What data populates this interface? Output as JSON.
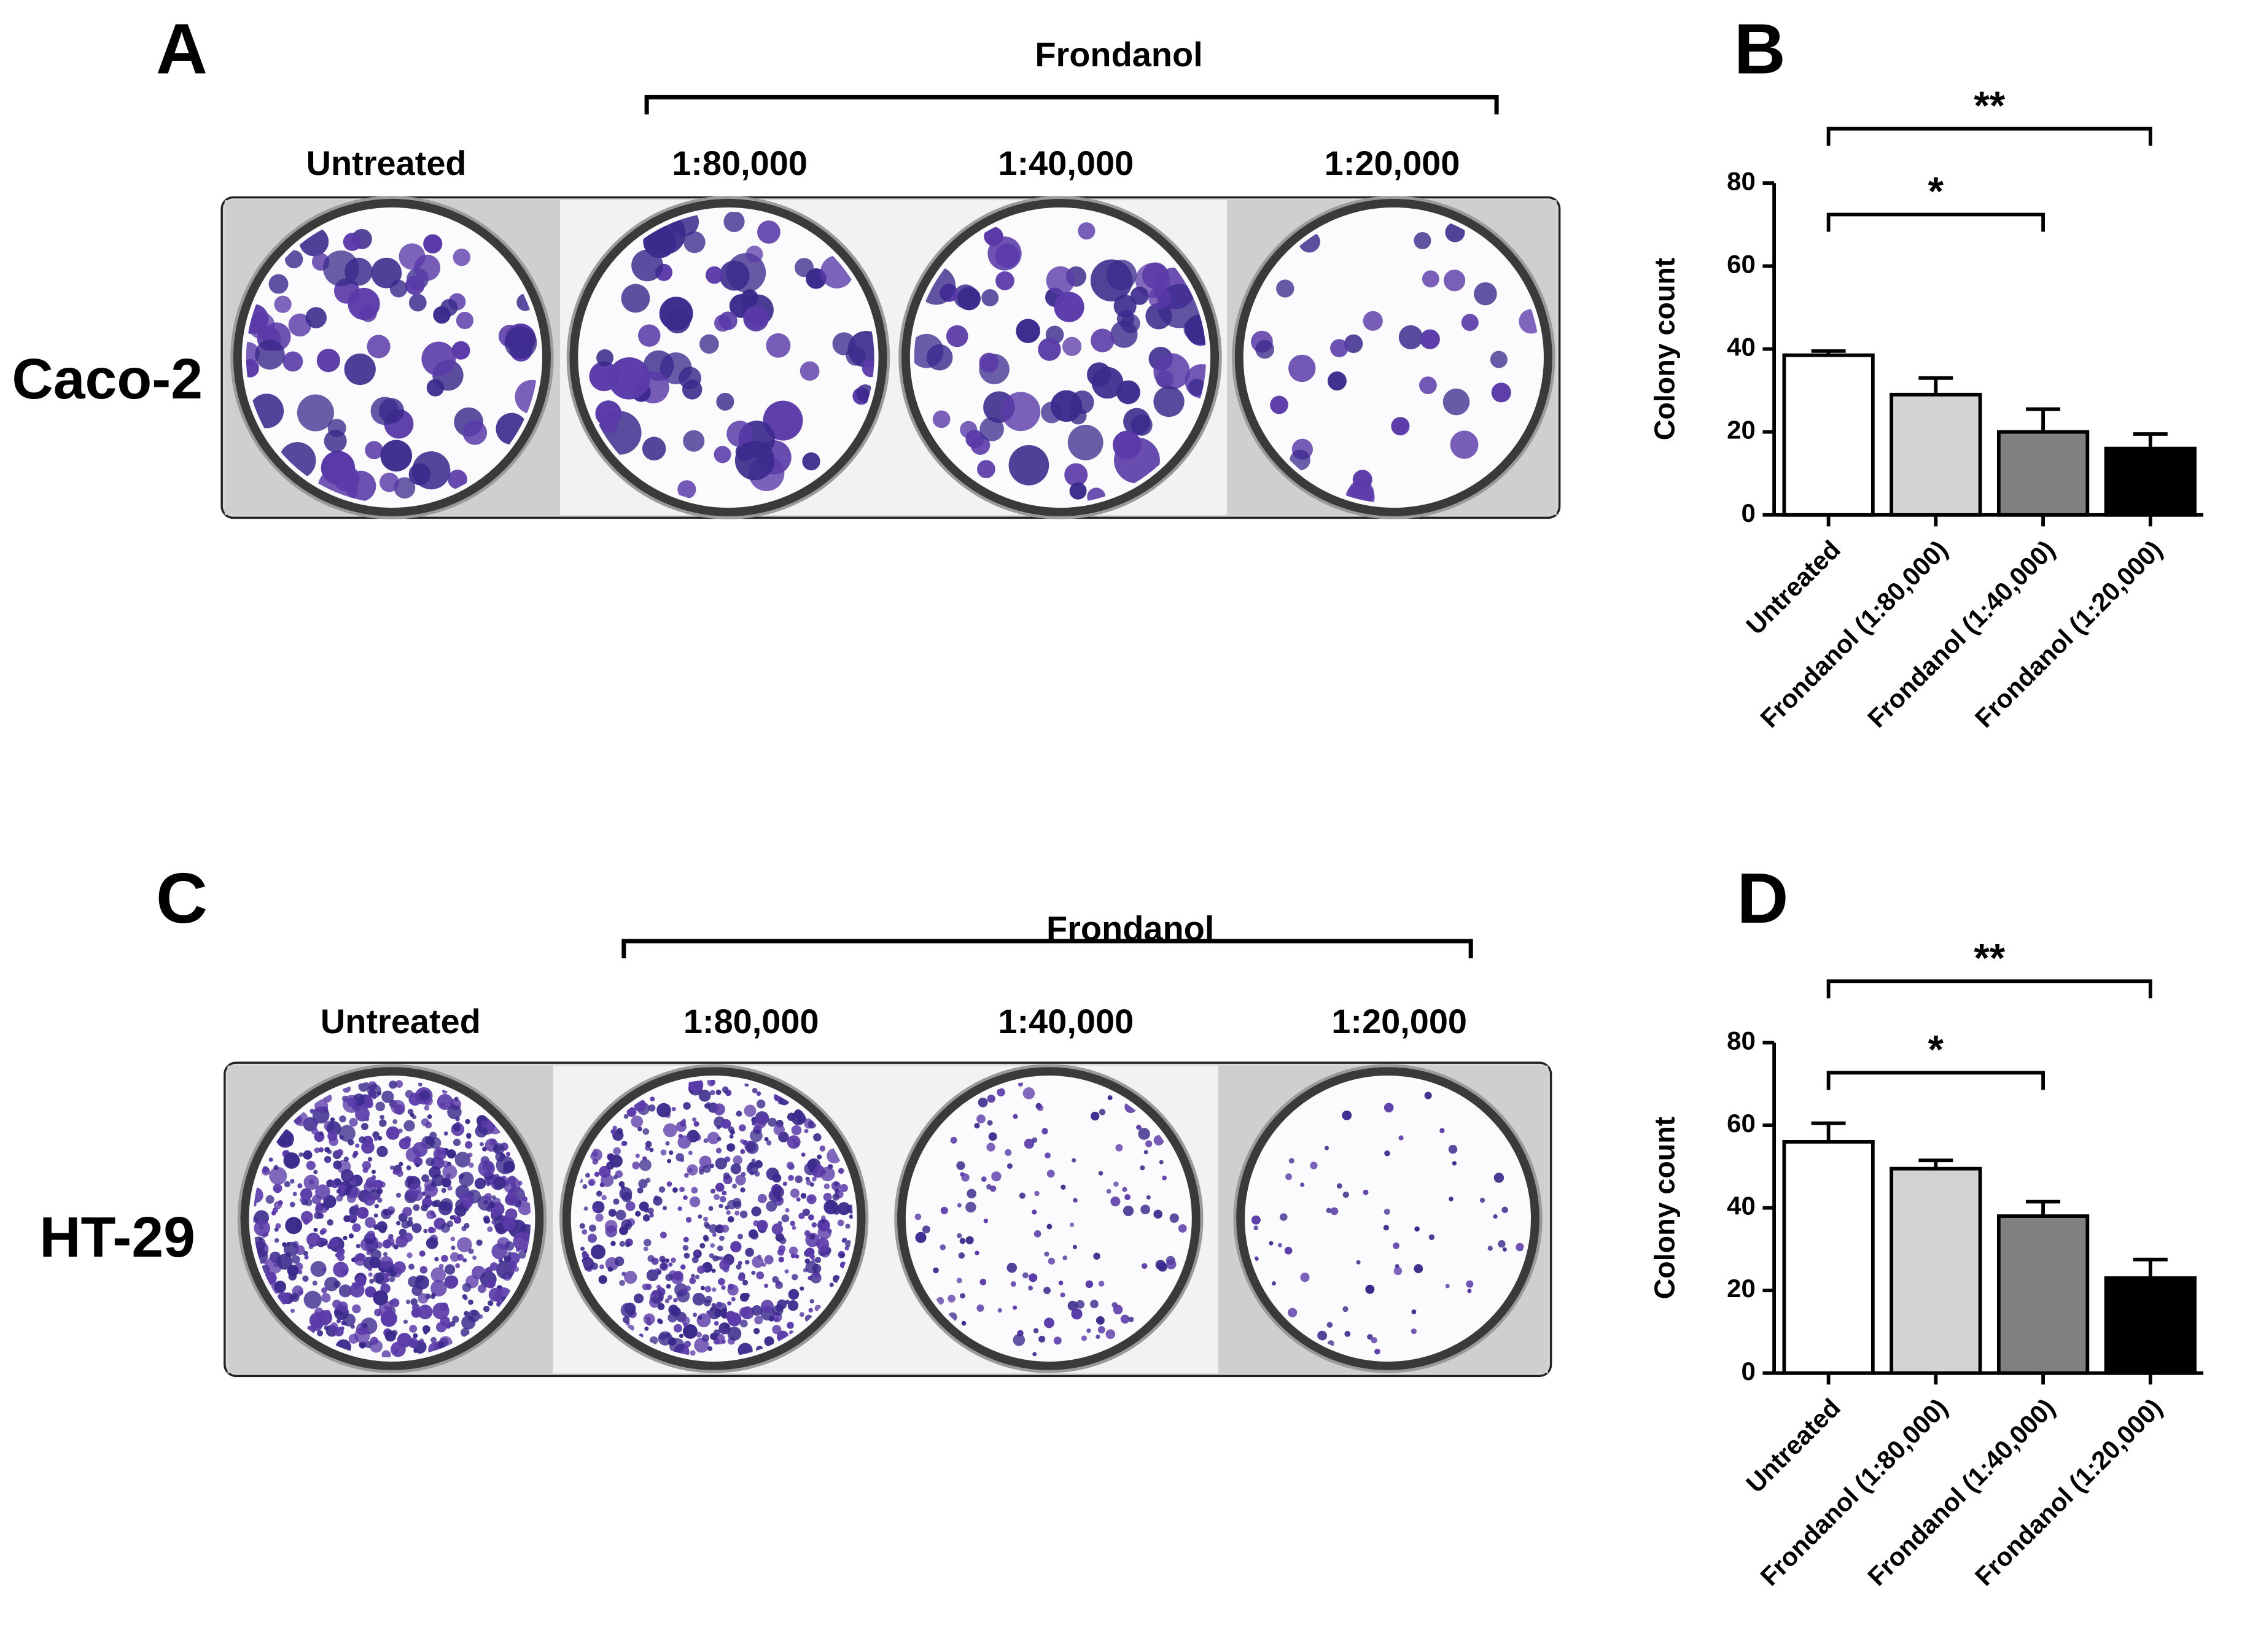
{
  "plates": [
    {
      "panel_label": "A",
      "cell_line": "Caco-2",
      "group_label": "Frondanol",
      "columns": [
        "Untreated",
        "1:80,000",
        "1:40,000",
        "1:20,000"
      ]
    },
    {
      "panel_label": "C",
      "cell_line": "HT-29",
      "group_label": "Frondanol",
      "columns": [
        "Untreated",
        "1:80,000",
        "1:40,000",
        "1:20,000"
      ]
    }
  ],
  "chart_data": [
    {
      "type": "bar",
      "panel_label": "B",
      "ylabel": "Colony count",
      "categories": [
        "Untreated",
        "Frondanol (1:80,000)",
        "Frondanol (1:40,000)",
        "Frondanol (1:20,000)"
      ],
      "values": [
        38.5,
        29,
        20,
        16
      ],
      "errors": [
        1,
        4,
        5.5,
        3.5
      ],
      "colors": [
        "#ffffff",
        "#d3d3d3",
        "#808080",
        "#000000"
      ],
      "ylim": [
        0,
        80
      ],
      "yticks": [
        0,
        20,
        40,
        60,
        80
      ],
      "annotations": [
        {
          "text": "**"
        },
        {
          "text": "*"
        }
      ]
    },
    {
      "type": "bar",
      "panel_label": "D",
      "ylabel": "Colony count",
      "categories": [
        "Untreated",
        "Frondanol (1:80,000)",
        "Frondanol (1:40,000)",
        "Frondanol (1:20,000)"
      ],
      "values": [
        56,
        49.5,
        38,
        23
      ],
      "errors": [
        4.5,
        2,
        3.5,
        4.5
      ],
      "colors": [
        "#ffffff",
        "#d3d3d3",
        "#808080",
        "#000000"
      ],
      "ylim": [
        0,
        80
      ],
      "yticks": [
        0,
        20,
        40,
        60,
        80
      ],
      "annotations": [
        {
          "text": "**"
        },
        {
          "text": "*"
        }
      ]
    }
  ]
}
